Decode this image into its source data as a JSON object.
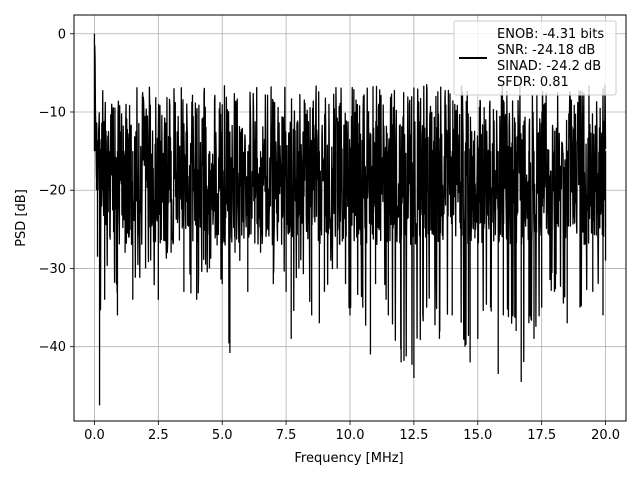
{
  "chart_data": {
    "type": "line",
    "title": "",
    "xlabel": "Frequency [MHz]",
    "ylabel": "PSD [dB]",
    "xlim": [
      -0.8,
      20.8
    ],
    "ylim": [
      -49.5,
      2.4
    ],
    "xticks": [
      0.0,
      2.5,
      5.0,
      7.5,
      10.0,
      12.5,
      15.0,
      17.5,
      20.0
    ],
    "xtick_labels": [
      "0.0",
      "2.5",
      "5.0",
      "7.5",
      "10.0",
      "12.5",
      "15.0",
      "17.5",
      "20.0"
    ],
    "yticks": [
      0,
      -10,
      -20,
      -30,
      -40
    ],
    "ytick_labels": [
      "0",
      "−10",
      "−20",
      "−30",
      "−40"
    ],
    "grid": true,
    "legend_position": "top-right",
    "legend_text": [
      "ENOB: -4.31 bits",
      "SNR: -24.18 dB",
      "SINAD: -24.2 dB",
      "SFDR: 0.81"
    ],
    "series": [
      {
        "color": "#000000",
        "note": "Dense noise-floor PSD trace; values summarized as envelope points (x in MHz, y in dB)",
        "x": [
          0.0,
          0.02,
          0.05,
          0.08,
          0.12,
          0.2,
          0.3,
          0.4,
          0.6,
          0.9,
          1.2,
          1.5,
          2.0,
          2.5,
          3.0,
          3.5,
          4.0,
          4.5,
          5.0,
          5.3,
          5.5,
          6.0,
          6.5,
          7.0,
          7.5,
          7.7,
          8.0,
          8.5,
          8.8,
          9.0,
          9.5,
          10.0,
          10.5,
          10.8,
          11.0,
          11.5,
          12.0,
          12.5,
          13.0,
          13.5,
          14.0,
          14.5,
          14.7,
          15.0,
          15.5,
          15.8,
          16.0,
          16.5,
          16.7,
          17.0,
          17.2,
          17.5,
          18.0,
          18.5,
          19.0,
          19.5,
          19.9,
          20.0
        ],
        "y": [
          0.0,
          -3.0,
          -12.0,
          -20.0,
          -28.5,
          -47.5,
          -20.0,
          -34.0,
          -26.0,
          -36.0,
          -28.0,
          -34.0,
          -30.0,
          -34.0,
          -28.0,
          -33.0,
          -34.0,
          -30.0,
          -32.0,
          -40.8,
          -28.0,
          -33.0,
          -28.0,
          -32.0,
          -33.0,
          -39.0,
          -30.0,
          -36.0,
          -37.0,
          -33.0,
          -30.0,
          -36.0,
          -35.0,
          -41.0,
          -32.0,
          -36.0,
          -42.0,
          -44.0,
          -35.0,
          -39.0,
          -36.0,
          -40.0,
          -42.0,
          -39.0,
          -35.0,
          -43.5,
          -36.0,
          -38.0,
          -44.5,
          -37.0,
          -39.0,
          -35.0,
          -33.0,
          -37.0,
          -35.0,
          -33.0,
          -36.0,
          -29.0
        ]
      }
    ]
  }
}
